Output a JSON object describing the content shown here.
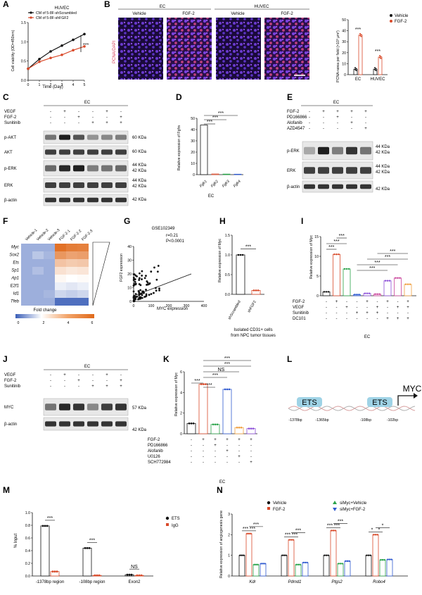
{
  "panel_labels": [
    "A",
    "B",
    "C",
    "D",
    "E",
    "F",
    "G",
    "H",
    "I",
    "J",
    "K",
    "L",
    "M",
    "N"
  ],
  "A": {
    "title": "HUVEC",
    "legend": [
      "CM of 5-8F-shScrambled",
      "CM of 5-8F-shFGF2"
    ],
    "ylabel": "Cell viability (OD=450nm)",
    "xlabel": "Time (Day)",
    "yticks": [
      "0.0",
      "0.5",
      "1.0",
      "1.5"
    ],
    "xticks": [
      "0",
      "1",
      "2",
      "3",
      "4",
      "5"
    ],
    "sig": "***",
    "colors": {
      "s1": "#111111",
      "s2": "#d94a2a"
    }
  },
  "B": {
    "header_ec": "EC",
    "header_huvec": "HUVEC",
    "col_labels": [
      "Vehicle",
      "FGF-2",
      "Vehicle",
      "FGF-2"
    ],
    "side_label": "PCNA/DAPI",
    "ylabel": "PCNA+area per field (×10³ μm²)",
    "yticks": [
      "0",
      "10",
      "20",
      "30",
      "40",
      "50"
    ],
    "xcats": [
      "EC",
      "HUVEC"
    ],
    "legend": [
      "Vehicle",
      "FGF-2"
    ],
    "sig": [
      "***",
      "***"
    ]
  },
  "C": {
    "header": "EC",
    "rows": [
      "VEGF",
      "FGF-2",
      "Sunitinib"
    ],
    "signs": [
      [
        "-",
        "+",
        "-",
        "-",
        "+",
        "-"
      ],
      [
        "-",
        "-",
        "+",
        "-",
        "-",
        "+"
      ],
      [
        "-",
        "-",
        "-",
        "+",
        "+",
        "+"
      ]
    ],
    "bands": [
      "p-AKT",
      "AKT",
      "p-ERK",
      "ERK",
      "β-actin"
    ],
    "kda": [
      "60 KDa",
      "60 KDa",
      "44 KDa",
      "42 KDa",
      "44 KDa",
      "42 KDa",
      "42 KDa"
    ]
  },
  "D": {
    "ylabel": "Relative expression of Fgfrs",
    "cats": [
      "Fgfr1",
      "Fgfr2",
      "Fgfr3",
      "Fgfr4"
    ],
    "yticks": [
      "0",
      "10",
      "20",
      "30",
      "40",
      "50"
    ],
    "xlabel": "EC",
    "sig": [
      "***",
      "***",
      "***"
    ],
    "chart_data": {
      "type": "bar",
      "categories": [
        "Fgfr1",
        "Fgfr2",
        "Fgfr3",
        "Fgfr4"
      ],
      "values": [
        44,
        0.6,
        0.5,
        0.4
      ],
      "ylim": [
        0,
        50
      ]
    }
  },
  "E": {
    "header": "EC",
    "rows": [
      "FGF-2",
      "PD166866",
      "Alofanib",
      "AZD4547"
    ],
    "signs": [
      [
        "-",
        "+",
        "+",
        "+",
        "+"
      ],
      [
        "-",
        "-",
        "+",
        "-",
        "-"
      ],
      [
        "-",
        "-",
        "-",
        "+",
        "-"
      ],
      [
        "-",
        "-",
        "-",
        "-",
        "+"
      ]
    ],
    "bands": [
      "p-ERK",
      "ERK",
      "β-actin"
    ],
    "kda": [
      "44 KDa",
      "42 KDa",
      "44 KDa",
      "42 KDa",
      "42 KDa"
    ]
  },
  "F": {
    "cols": [
      "Vehicle-1",
      "Vehicle-2",
      "Vehicle-3",
      "FGF-2-1",
      "FGF-2-2",
      "FGF-2-3"
    ],
    "rows": [
      "Myc",
      "Sox2",
      "Ets",
      "Sp1",
      "Ap1",
      "E2f1",
      "Id1",
      "Tfeb"
    ],
    "legend_title": "Fold change",
    "legend_ticks": [
      "0",
      "2",
      "4",
      "6"
    ]
  },
  "G": {
    "title": "GSE102349",
    "r": "r=0.21",
    "p": "P<0.0001",
    "ylabel": "FGF2 expression",
    "xlabel": "MYC expression",
    "xticks": [
      "0",
      "100",
      "200",
      "300",
      "400"
    ],
    "yticks": [
      "0",
      "10",
      "20",
      "30",
      "40"
    ]
  },
  "H": {
    "ylabel": "Relative expression of Myc",
    "yticks": [
      "0.0",
      "0.5",
      "1.0",
      "1.5"
    ],
    "cats": [
      "shScrambled",
      "shFGF2"
    ],
    "sig": "***",
    "footer": [
      "Isolated CD31+ cells",
      "from NPC tumor tissues"
    ],
    "chart_data": {
      "type": "bar",
      "categories": [
        "shScrambled",
        "shFGF2"
      ],
      "values": [
        1.0,
        0.1
      ],
      "ylim": [
        0,
        1.5
      ]
    }
  },
  "I": {
    "ylabel": "Relative expression of Myc",
    "yticks": [
      "0",
      "5",
      "10",
      "15"
    ],
    "rows": [
      "FGF-2",
      "VEGF",
      "Sunitinib",
      "DC101"
    ],
    "signs": [
      [
        "-",
        "+",
        "-",
        "-",
        "+",
        "-",
        "+",
        "-",
        "+"
      ],
      [
        "-",
        "-",
        "+",
        "-",
        "-",
        "+",
        "-",
        "+",
        "+"
      ],
      [
        "-",
        "-",
        "-",
        "+",
        "+",
        "+",
        "-",
        "-",
        "-"
      ],
      [
        "-",
        "-",
        "-",
        "-",
        "-",
        "-",
        "+",
        "+",
        "+"
      ]
    ],
    "xlabel": "EC",
    "sig": [
      "***",
      "***",
      "***",
      "***",
      "***",
      "***",
      "***"
    ]
  },
  "J": {
    "header": "EC",
    "rows": [
      "VEGF",
      "FGF-2",
      "Sunitinib"
    ],
    "signs": [
      [
        "-",
        "+",
        "-",
        "-",
        "+",
        "-"
      ],
      [
        "-",
        "-",
        "+",
        "-",
        "-",
        "+"
      ],
      [
        "-",
        "-",
        "-",
        "+",
        "+",
        "+"
      ]
    ],
    "bands": [
      "MYC",
      "β-actin"
    ],
    "kda": [
      "57 KDa",
      "42 KDa"
    ]
  },
  "K": {
    "ylabel": "Relative expression of Myc",
    "yticks": [
      "0",
      "2",
      "4",
      "6"
    ],
    "rows": [
      "FGF-2",
      "PD166866",
      "Alofanib",
      "U0126",
      "SCH772984"
    ],
    "signs": [
      [
        "-",
        "+",
        "+",
        "+",
        "+",
        "+"
      ],
      [
        "-",
        "-",
        "+",
        "-",
        "-",
        "-"
      ],
      [
        "-",
        "-",
        "-",
        "+",
        "-",
        "-"
      ],
      [
        "-",
        "-",
        "-",
        "-",
        "+",
        "-"
      ],
      [
        "-",
        "-",
        "-",
        "-",
        "-",
        "+"
      ]
    ],
    "xlabel": "EC",
    "sig": [
      "***",
      "***",
      "***",
      "NS",
      "***",
      "***"
    ]
  },
  "L": {
    "gene": "MYC",
    "sites": [
      "ETS",
      "ETS"
    ],
    "positions": [
      "-1378bp",
      "-1365bp",
      "-108bp",
      "-102bp"
    ]
  },
  "M": {
    "ylabel": "% Input",
    "yticks": [
      "0.0",
      "0.2",
      "0.4",
      "0.6",
      "0.8",
      "1.0"
    ],
    "cats": [
      "-1378bp region",
      "-108bp region",
      "Exon2"
    ],
    "legend": [
      "ETS",
      "IgG"
    ],
    "sig": [
      "***",
      "***",
      "NS"
    ],
    "chart_data": {
      "type": "bar",
      "categories": [
        "-1378bp region",
        "-108bp region",
        "Exon2"
      ],
      "series": [
        {
          "name": "ETS",
          "values": [
            0.79,
            0.44,
            0.02
          ]
        },
        {
          "name": "IgG",
          "values": [
            0.07,
            0.01,
            0.01
          ]
        }
      ],
      "ylim": [
        0,
        1.0
      ]
    }
  },
  "N": {
    "ylabel": "Relative expression of angiogenesis gene",
    "yticks": [
      "0",
      "1",
      "2",
      "3"
    ],
    "cats": [
      "Kdr",
      "Pdmd1",
      "Ptgs2",
      "Robo4"
    ],
    "legend": [
      "Vehicle",
      "FGF-2",
      "siMyc+Vehicle",
      "siMyc+FGF-2"
    ],
    "sig_groups": [
      [
        "***",
        "***",
        "***"
      ],
      [
        "***",
        "***",
        "***"
      ],
      [
        "***",
        "***",
        "***"
      ],
      [
        "*",
        "*",
        "*"
      ]
    ],
    "chart_data": {
      "type": "bar",
      "categories": [
        "Kdr",
        "Pdmd1",
        "Ptgs2",
        "Robo4"
      ],
      "series": [
        {
          "name": "Vehicle",
          "values": [
            1.0,
            1.0,
            1.0,
            1.0
          ]
        },
        {
          "name": "FGF-2",
          "values": [
            2.05,
            1.75,
            2.2,
            2.0
          ]
        },
        {
          "name": "siMyc+Vehicle",
          "values": [
            0.55,
            0.55,
            0.6,
            0.78
          ]
        },
        {
          "name": "siMyc+FGF-2",
          "values": [
            0.6,
            0.65,
            0.72,
            0.8
          ]
        }
      ],
      "ylim": [
        0,
        3
      ]
    }
  }
}
